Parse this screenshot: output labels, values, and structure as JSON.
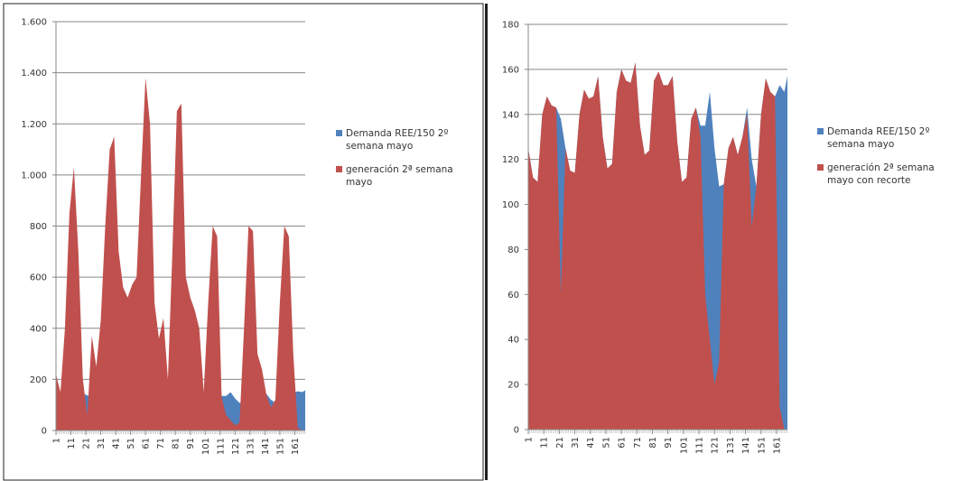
{
  "chart_data": [
    {
      "type": "area",
      "x": [
        1,
        4,
        7,
        10,
        13,
        16,
        19,
        22,
        25,
        28,
        31,
        34,
        37,
        40,
        43,
        46,
        49,
        52,
        55,
        58,
        61,
        64,
        67,
        70,
        73,
        76,
        79,
        82,
        85,
        88,
        91,
        94,
        97,
        100,
        103,
        106,
        109,
        112,
        115,
        118,
        121,
        124,
        127,
        130,
        133,
        136,
        139,
        142,
        145,
        148,
        151,
        154,
        157,
        160,
        163,
        166,
        168
      ],
      "xlim": [
        1,
        168
      ],
      "xticks": [
        1,
        11,
        21,
        31,
        41,
        51,
        61,
        71,
        81,
        91,
        101,
        111,
        121,
        131,
        141,
        151,
        161
      ],
      "ylim": [
        0,
        1600
      ],
      "yticks": [
        0,
        200,
        400,
        600,
        800,
        {
          "value": 1000,
          "label": "1.000"
        },
        {
          "value": 1200,
          "label": "1.200"
        },
        {
          "value": 1400,
          "label": "1.400"
        },
        {
          "value": 1600,
          "label": "1.600"
        }
      ],
      "grid": true,
      "series": [
        {
          "name": "Demanda REE/150 2º semana mayo",
          "color": "#4f81bd",
          "values": [
            125,
            112,
            110,
            140,
            148,
            144,
            143,
            138,
            125,
            115,
            114,
            140,
            151,
            147,
            148,
            157,
            130,
            116,
            118,
            150,
            160,
            155,
            154,
            163,
            135,
            122,
            124,
            155,
            159,
            153,
            153,
            157,
            128,
            110,
            112,
            138,
            143,
            135,
            135,
            150,
            125,
            108,
            109,
            125,
            130,
            122,
            130,
            143,
            120,
            108,
            140,
            156,
            150,
            148,
            153,
            150,
            157
          ]
        },
        {
          "name": "generación 2ª semana mayo",
          "color": "#c0504d",
          "values": [
            220,
            150,
            400,
            850,
            1030,
            700,
            200,
            60,
            370,
            250,
            430,
            800,
            1100,
            1150,
            700,
            560,
            520,
            570,
            600,
            1000,
            1380,
            1200,
            500,
            360,
            440,
            200,
            700,
            1250,
            1280,
            600,
            520,
            470,
            400,
            150,
            500,
            800,
            760,
            130,
            60,
            40,
            20,
            30,
            400,
            800,
            780,
            300,
            240,
            140,
            90,
            120,
            500,
            800,
            760,
            300,
            10,
            0,
            0
          ]
        }
      ]
    },
    {
      "type": "area",
      "x": [
        1,
        4,
        7,
        10,
        13,
        16,
        19,
        22,
        25,
        28,
        31,
        34,
        37,
        40,
        43,
        46,
        49,
        52,
        55,
        58,
        61,
        64,
        67,
        70,
        73,
        76,
        79,
        82,
        85,
        88,
        91,
        94,
        97,
        100,
        103,
        106,
        109,
        112,
        115,
        118,
        121,
        124,
        127,
        130,
        133,
        136,
        139,
        142,
        145,
        148,
        151,
        154,
        157,
        160,
        163,
        166,
        168
      ],
      "xlim": [
        1,
        168
      ],
      "xticks": [
        1,
        11,
        21,
        31,
        41,
        51,
        61,
        71,
        81,
        91,
        101,
        111,
        121,
        131,
        141,
        151,
        161
      ],
      "ylim": [
        0,
        180
      ],
      "yticks": [
        0,
        20,
        40,
        60,
        80,
        100,
        120,
        140,
        160,
        180
      ],
      "grid": true,
      "series": [
        {
          "name": "Demanda REE/150 2º semana mayo",
          "color": "#4f81bd",
          "values": [
            125,
            112,
            110,
            140,
            148,
            144,
            143,
            138,
            125,
            115,
            114,
            140,
            151,
            147,
            148,
            157,
            130,
            116,
            118,
            150,
            160,
            155,
            154,
            163,
            135,
            122,
            124,
            155,
            159,
            153,
            153,
            157,
            128,
            110,
            112,
            138,
            143,
            135,
            135,
            150,
            125,
            108,
            109,
            125,
            130,
            122,
            130,
            143,
            120,
            108,
            140,
            156,
            150,
            148,
            153,
            150,
            157
          ]
        },
        {
          "name": "generación 2ª semana mayo con recorte",
          "color": "#c0504d",
          "values": [
            125,
            112,
            110,
            140,
            148,
            144,
            143,
            60,
            125,
            115,
            114,
            140,
            151,
            147,
            148,
            157,
            130,
            116,
            118,
            150,
            160,
            155,
            154,
            163,
            135,
            122,
            124,
            155,
            159,
            153,
            153,
            157,
            128,
            110,
            112,
            138,
            143,
            130,
            60,
            40,
            20,
            30,
            109,
            125,
            130,
            122,
            130,
            140,
            90,
            108,
            140,
            156,
            150,
            148,
            10,
            0,
            0
          ]
        }
      ]
    }
  ]
}
